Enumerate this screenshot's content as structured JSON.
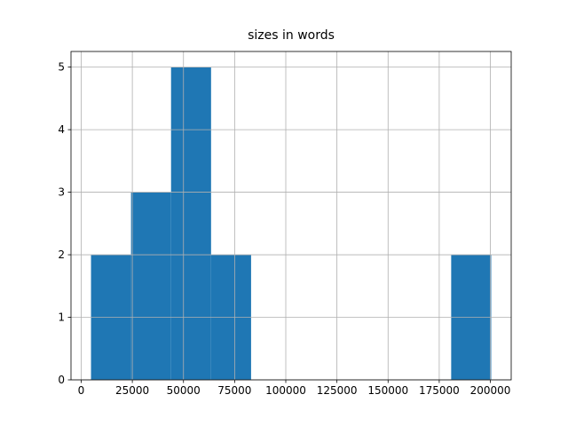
{
  "chart_data": {
    "type": "histogram",
    "title": "sizes in words",
    "bins": [
      4800,
      24360,
      43920,
      63480,
      83040,
      102600,
      122160,
      141720,
      161280,
      180840,
      200400
    ],
    "counts": [
      2,
      3,
      5,
      2,
      0,
      0,
      0,
      0,
      0,
      2
    ],
    "color": "#1f77b4",
    "xlim": [
      -4980,
      210180
    ],
    "xticks": [
      0,
      25000,
      50000,
      75000,
      100000,
      125000,
      150000,
      175000,
      200000
    ],
    "ylim": [
      0,
      5.25
    ],
    "yticks": [
      0,
      1,
      2,
      3,
      4,
      5
    ],
    "grid": true
  }
}
